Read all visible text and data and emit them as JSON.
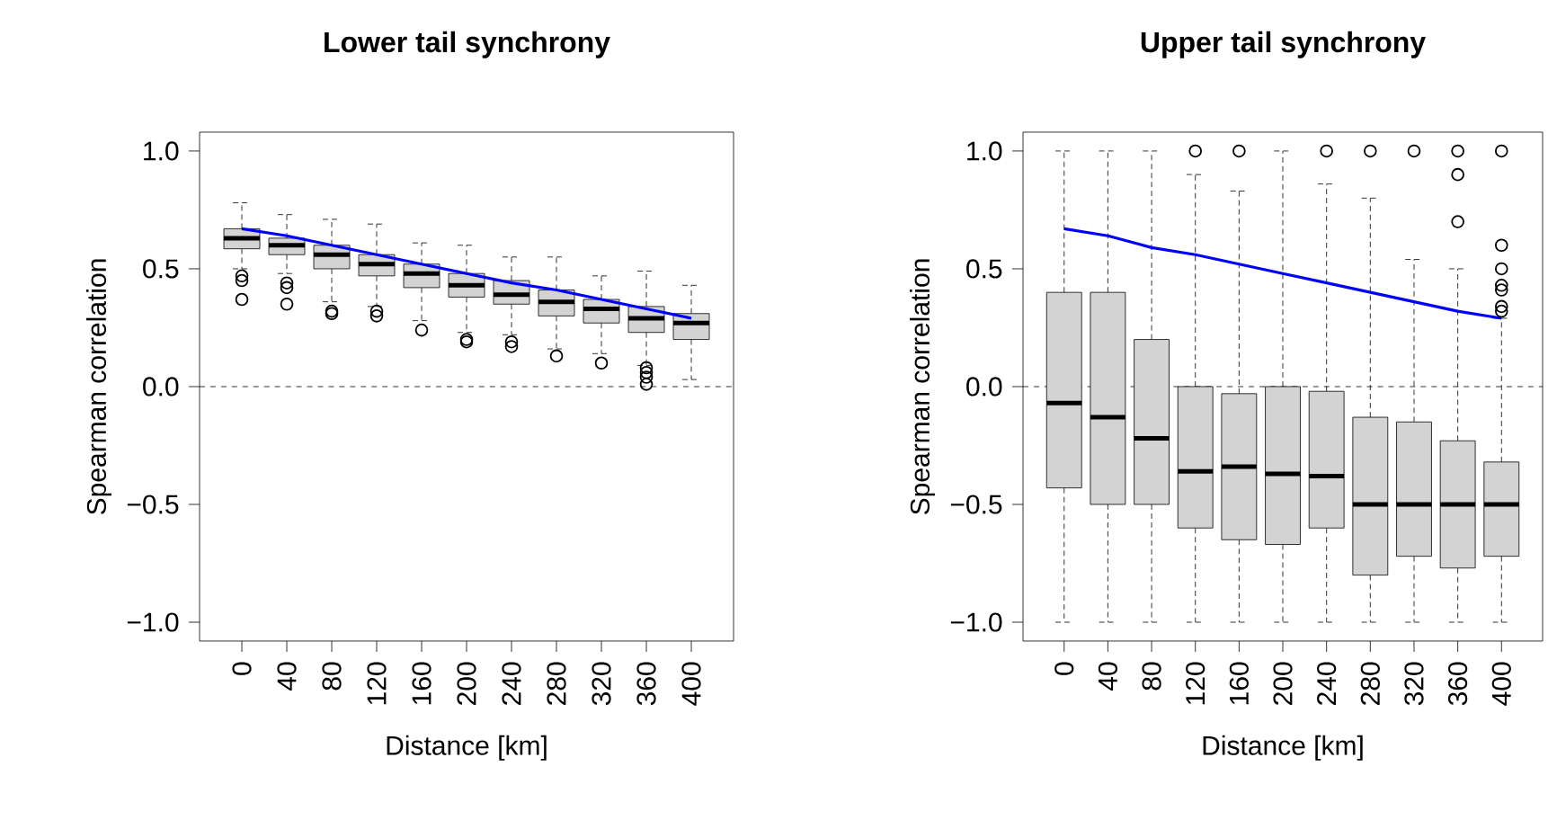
{
  "chart_data": [
    {
      "type": "box",
      "title": "Lower tail synchrony",
      "xlabel": "Distance [km]",
      "ylabel": "Spearman correlation",
      "categories": [
        "0",
        "40",
        "80",
        "120",
        "160",
        "200",
        "240",
        "280",
        "320",
        "360",
        "400"
      ],
      "ylim": [
        -1.08,
        1.08
      ],
      "yticks": [
        {
          "value": -1,
          "label": "−1.0"
        },
        {
          "value": -0.5,
          "label": "−0.5"
        },
        {
          "value": 0,
          "label": "0.0"
        },
        {
          "value": 0.5,
          "label": "0.5"
        },
        {
          "value": 1,
          "label": "1.0"
        }
      ],
      "ref_lines": [
        {
          "axis": "y",
          "value": 0,
          "line_style": "dashed"
        }
      ],
      "series": [
        {
          "color": "#d3d3d3",
          "boxes": [
            {
              "low": 0.5,
              "q1": 0.585,
              "median": 0.63,
              "q3": 0.67,
              "high": 0.78,
              "outliers": [
                0.47,
                0.45,
                0.37
              ]
            },
            {
              "low": 0.48,
              "q1": 0.56,
              "median": 0.6,
              "q3": 0.63,
              "high": 0.73,
              "outliers": [
                0.44,
                0.42,
                0.35
              ]
            },
            {
              "low": 0.36,
              "q1": 0.5,
              "median": 0.56,
              "q3": 0.6,
              "high": 0.71,
              "outliers": [
                0.32,
                0.31
              ]
            },
            {
              "low": 0.34,
              "q1": 0.47,
              "median": 0.52,
              "q3": 0.56,
              "high": 0.69,
              "outliers": [
                0.32,
                0.3
              ]
            },
            {
              "low": 0.28,
              "q1": 0.42,
              "median": 0.48,
              "q3": 0.52,
              "high": 0.61,
              "outliers": [
                0.24
              ]
            },
            {
              "low": 0.23,
              "q1": 0.38,
              "median": 0.43,
              "q3": 0.48,
              "high": 0.6,
              "outliers": [
                0.2,
                0.19
              ]
            },
            {
              "low": 0.22,
              "q1": 0.35,
              "median": 0.39,
              "q3": 0.45,
              "high": 0.55,
              "outliers": [
                0.19,
                0.17
              ]
            },
            {
              "low": 0.16,
              "q1": 0.3,
              "median": 0.36,
              "q3": 0.41,
              "high": 0.55,
              "outliers": [
                0.13
              ]
            },
            {
              "low": 0.14,
              "q1": 0.27,
              "median": 0.33,
              "q3": 0.37,
              "high": 0.47,
              "outliers": [
                0.1
              ]
            },
            {
              "low": 0.09,
              "q1": 0.23,
              "median": 0.29,
              "q3": 0.34,
              "high": 0.49,
              "outliers": [
                0.08,
                0.06,
                0.04,
                0.01
              ]
            },
            {
              "low": 0.03,
              "q1": 0.2,
              "median": 0.27,
              "q3": 0.31,
              "high": 0.43
            }
          ]
        },
        {
          "type": "line",
          "color": "#0000ff",
          "values": [
            0.67,
            0.64,
            0.6,
            0.56,
            0.52,
            0.48,
            0.44,
            0.41,
            0.37,
            0.33,
            0.29
          ]
        }
      ]
    },
    {
      "type": "box",
      "title": "Upper tail synchrony",
      "xlabel": "Distance [km]",
      "ylabel": "Spearman correlation",
      "categories": [
        "0",
        "40",
        "80",
        "120",
        "160",
        "200",
        "240",
        "280",
        "320",
        "360",
        "400"
      ],
      "ylim": [
        -1.08,
        1.08
      ],
      "yticks": [
        {
          "value": -1,
          "label": "−1.0"
        },
        {
          "value": -0.5,
          "label": "−0.5"
        },
        {
          "value": 0,
          "label": "0.0"
        },
        {
          "value": 0.5,
          "label": "0.5"
        },
        {
          "value": 1,
          "label": "1.0"
        }
      ],
      "ref_lines": [
        {
          "axis": "y",
          "value": 0,
          "line_style": "dashed"
        }
      ],
      "series": [
        {
          "color": "#d3d3d3",
          "boxes": [
            {
              "low": -1.0,
              "q1": -0.43,
              "median": -0.07,
              "q3": 0.4,
              "high": 1.0
            },
            {
              "low": -1.0,
              "q1": -0.5,
              "median": -0.13,
              "q3": 0.4,
              "high": 1.0
            },
            {
              "low": -1.0,
              "q1": -0.5,
              "median": -0.22,
              "q3": 0.2,
              "high": 1.0
            },
            {
              "low": -1.0,
              "q1": -0.6,
              "median": -0.36,
              "q3": 0.0,
              "high": 0.9,
              "outliers": [
                1.0
              ]
            },
            {
              "low": -1.0,
              "q1": -0.65,
              "median": -0.34,
              "q3": -0.03,
              "high": 0.83,
              "outliers": [
                1.0
              ]
            },
            {
              "low": -1.0,
              "q1": -0.67,
              "median": -0.37,
              "q3": 0.0,
              "high": 1.0
            },
            {
              "low": -1.0,
              "q1": -0.6,
              "median": -0.38,
              "q3": -0.02,
              "high": 0.86,
              "outliers": [
                1.0
              ]
            },
            {
              "low": -1.0,
              "q1": -0.8,
              "median": -0.5,
              "q3": -0.13,
              "high": 0.8,
              "outliers": [
                1.0
              ]
            },
            {
              "low": -1.0,
              "q1": -0.72,
              "median": -0.5,
              "q3": -0.15,
              "high": 0.54,
              "outliers": [
                1.0
              ]
            },
            {
              "low": -1.0,
              "q1": -0.77,
              "median": -0.5,
              "q3": -0.23,
              "high": 0.5,
              "outliers": [
                1.0,
                0.9,
                0.7
              ]
            },
            {
              "low": -1.0,
              "q1": -0.72,
              "median": -0.5,
              "q3": -0.32,
              "high": 0.29,
              "outliers": [
                1.0,
                0.6,
                0.5,
                0.43,
                0.41,
                0.34,
                0.32
              ]
            }
          ]
        },
        {
          "type": "line",
          "color": "#0000ff",
          "values": [
            0.67,
            0.64,
            0.59,
            0.56,
            0.52,
            0.48,
            0.44,
            0.4,
            0.36,
            0.32,
            0.29
          ]
        }
      ]
    }
  ]
}
